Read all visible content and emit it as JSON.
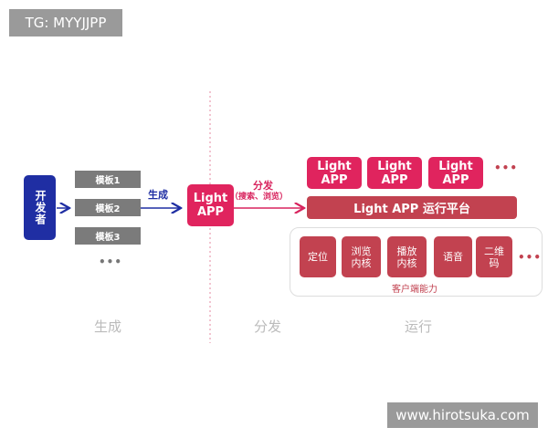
{
  "watermark_tg": "TG: MYYJJPP",
  "watermark_site": "www.hirotsuka.com",
  "developer": "开发者",
  "templates": [
    "模板1",
    "模板2",
    "模板3"
  ],
  "ellipsis": "•••",
  "generate_label": "生成",
  "light_app": {
    "line1": "Light",
    "line2": "APP"
  },
  "distribute_label": "分发",
  "distribute_sub": "（搜索、浏览）",
  "platform": "Light APP 运行平台",
  "capabilities": [
    "定位",
    "浏览\n内核",
    "播放\n内核",
    "语音",
    "二维\n码"
  ],
  "capabilities_label": "客户端能力",
  "stages": [
    "生成",
    "分发",
    "运行"
  ],
  "colors": {
    "developer": "#1f2ea3",
    "light_app": "#e0245e",
    "platform": "#c24250",
    "template": "#7b7b7b"
  }
}
